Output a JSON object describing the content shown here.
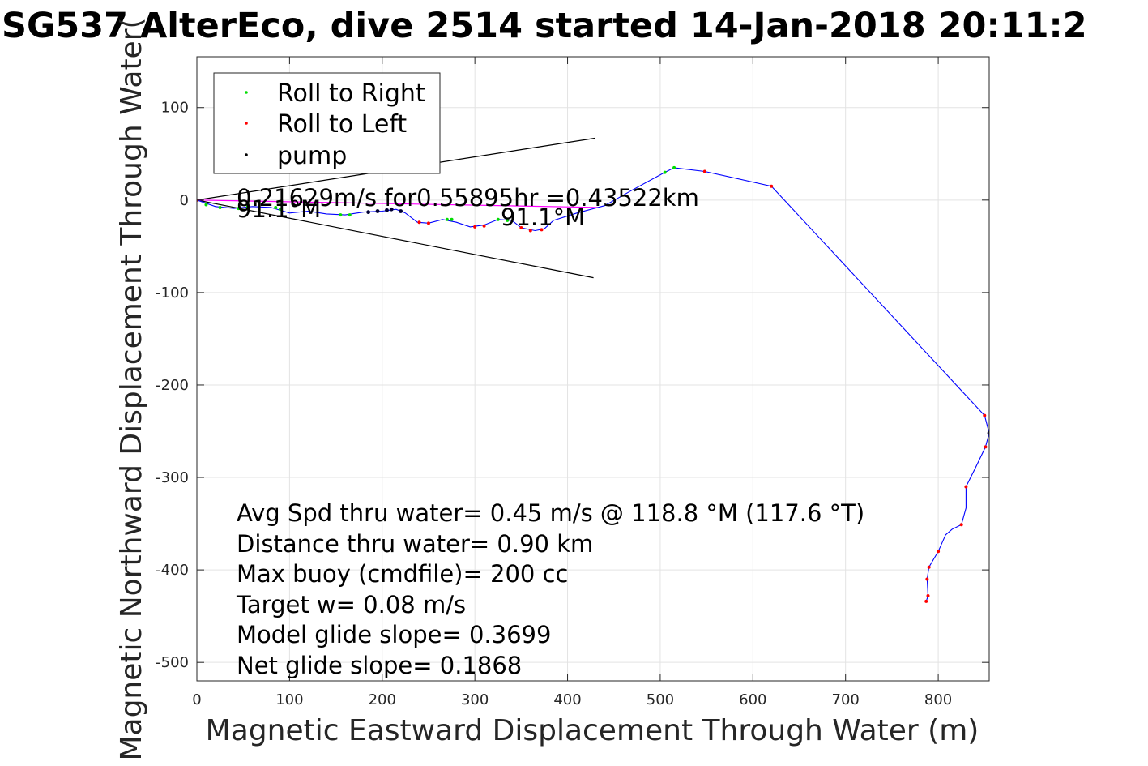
{
  "chart_data": {
    "type": "line",
    "title": "SG537 AlterEco, dive 2514 started 14-Jan-2018 20:11:2",
    "xlabel": "Magnetic Eastward Displacement Through Water (m)",
    "ylabel": "Magnetic Northward Displacement Through Water(",
    "xlim": [
      0,
      855
    ],
    "ylim": [
      -520,
      155
    ],
    "xticks": [
      0,
      100,
      200,
      300,
      400,
      500,
      600,
      700,
      800
    ],
    "yticks": [
      100,
      0,
      -100,
      -200,
      -300,
      -400,
      -500
    ],
    "grid": true,
    "legend_position": "top-left",
    "legend": [
      {
        "label": "Roll to Right",
        "color": "#00dd00"
      },
      {
        "label": "Roll to Left",
        "color": "#ff0000"
      },
      {
        "label": "pump",
        "color": "#000000"
      }
    ],
    "track": {
      "color": "#0000ff",
      "points": [
        [
          0,
          0
        ],
        [
          20,
          -7
        ],
        [
          40,
          -9
        ],
        [
          60,
          -7
        ],
        [
          80,
          -8
        ],
        [
          100,
          -14
        ],
        [
          120,
          -12
        ],
        [
          140,
          -15
        ],
        [
          160,
          -16
        ],
        [
          180,
          -13
        ],
        [
          200,
          -12
        ],
        [
          215,
          -10
        ],
        [
          225,
          -14
        ],
        [
          238,
          -24
        ],
        [
          250,
          -25
        ],
        [
          265,
          -21
        ],
        [
          280,
          -24
        ],
        [
          295,
          -29
        ],
        [
          310,
          -27
        ],
        [
          325,
          -21
        ],
        [
          340,
          -22
        ],
        [
          350,
          -30
        ],
        [
          365,
          -33
        ],
        [
          375,
          -31
        ],
        [
          385,
          -22
        ],
        [
          410,
          -14
        ],
        [
          440,
          -6
        ],
        [
          470,
          11
        ],
        [
          505,
          30
        ],
        [
          515,
          35
        ],
        [
          548,
          31
        ],
        [
          620,
          15
        ],
        [
          850,
          -233
        ],
        [
          855,
          -252
        ],
        [
          851,
          -267
        ],
        [
          840,
          -290
        ],
        [
          830,
          -310
        ],
        [
          830,
          -333
        ],
        [
          825,
          -351
        ],
        [
          815,
          -356
        ],
        [
          808,
          -362
        ],
        [
          800,
          -380
        ],
        [
          797,
          -385
        ],
        [
          790,
          -397
        ],
        [
          788,
          -410
        ],
        [
          789,
          -428
        ],
        [
          787,
          -434
        ]
      ]
    },
    "roll_right": [
      [
        10,
        -5
      ],
      [
        25,
        -8
      ],
      [
        45,
        -9
      ],
      [
        55,
        -7
      ],
      [
        85,
        -8
      ],
      [
        90,
        -10
      ],
      [
        155,
        -16
      ],
      [
        165,
        -16
      ],
      [
        270,
        -21
      ],
      [
        275,
        -21
      ],
      [
        325,
        -21
      ],
      [
        335,
        -22
      ],
      [
        505,
        30
      ],
      [
        515,
        35
      ]
    ],
    "roll_left": [
      [
        0,
        0
      ],
      [
        240,
        -24
      ],
      [
        250,
        -25
      ],
      [
        300,
        -29
      ],
      [
        310,
        -28
      ],
      [
        350,
        -30
      ],
      [
        360,
        -33
      ],
      [
        372,
        -32
      ],
      [
        548,
        31
      ],
      [
        620,
        15
      ],
      [
        850,
        -233
      ],
      [
        851,
        -267
      ],
      [
        830,
        -310
      ],
      [
        825,
        -351
      ],
      [
        800,
        -380
      ],
      [
        790,
        -397
      ],
      [
        788,
        -410
      ],
      [
        789,
        -428
      ],
      [
        787,
        -434
      ]
    ],
    "pump": [
      [
        185,
        -13
      ],
      [
        195,
        -12
      ],
      [
        205,
        -11
      ],
      [
        210,
        -10
      ],
      [
        220,
        -12
      ],
      [
        855,
        -252
      ]
    ],
    "mean_current_line": {
      "color": "#ff00ff",
      "points": [
        [
          0,
          0
        ],
        [
          435,
          -8
        ]
      ]
    },
    "heading_lines": [
      {
        "points": [
          [
            0,
            0
          ],
          [
            430,
            67
          ]
        ],
        "label": "91.1°M"
      },
      {
        "points": [
          [
            0,
            0
          ],
          [
            428,
            -84
          ]
        ],
        "label": "91.1°M"
      }
    ],
    "annotation_current": "0.21629m/s for0.55895hr =0.43522km",
    "stats": [
      "Avg Spd thru water=  0.45 m/s @ 118.8 °M (117.6 °T)",
      "Distance thru water=  0.90 km",
      "Max buoy (cmdfile)= 200 cc",
      "Target w= 0.08 m/s",
      "Model glide slope= 0.3699",
      "Net glide slope= 0.1868"
    ]
  }
}
